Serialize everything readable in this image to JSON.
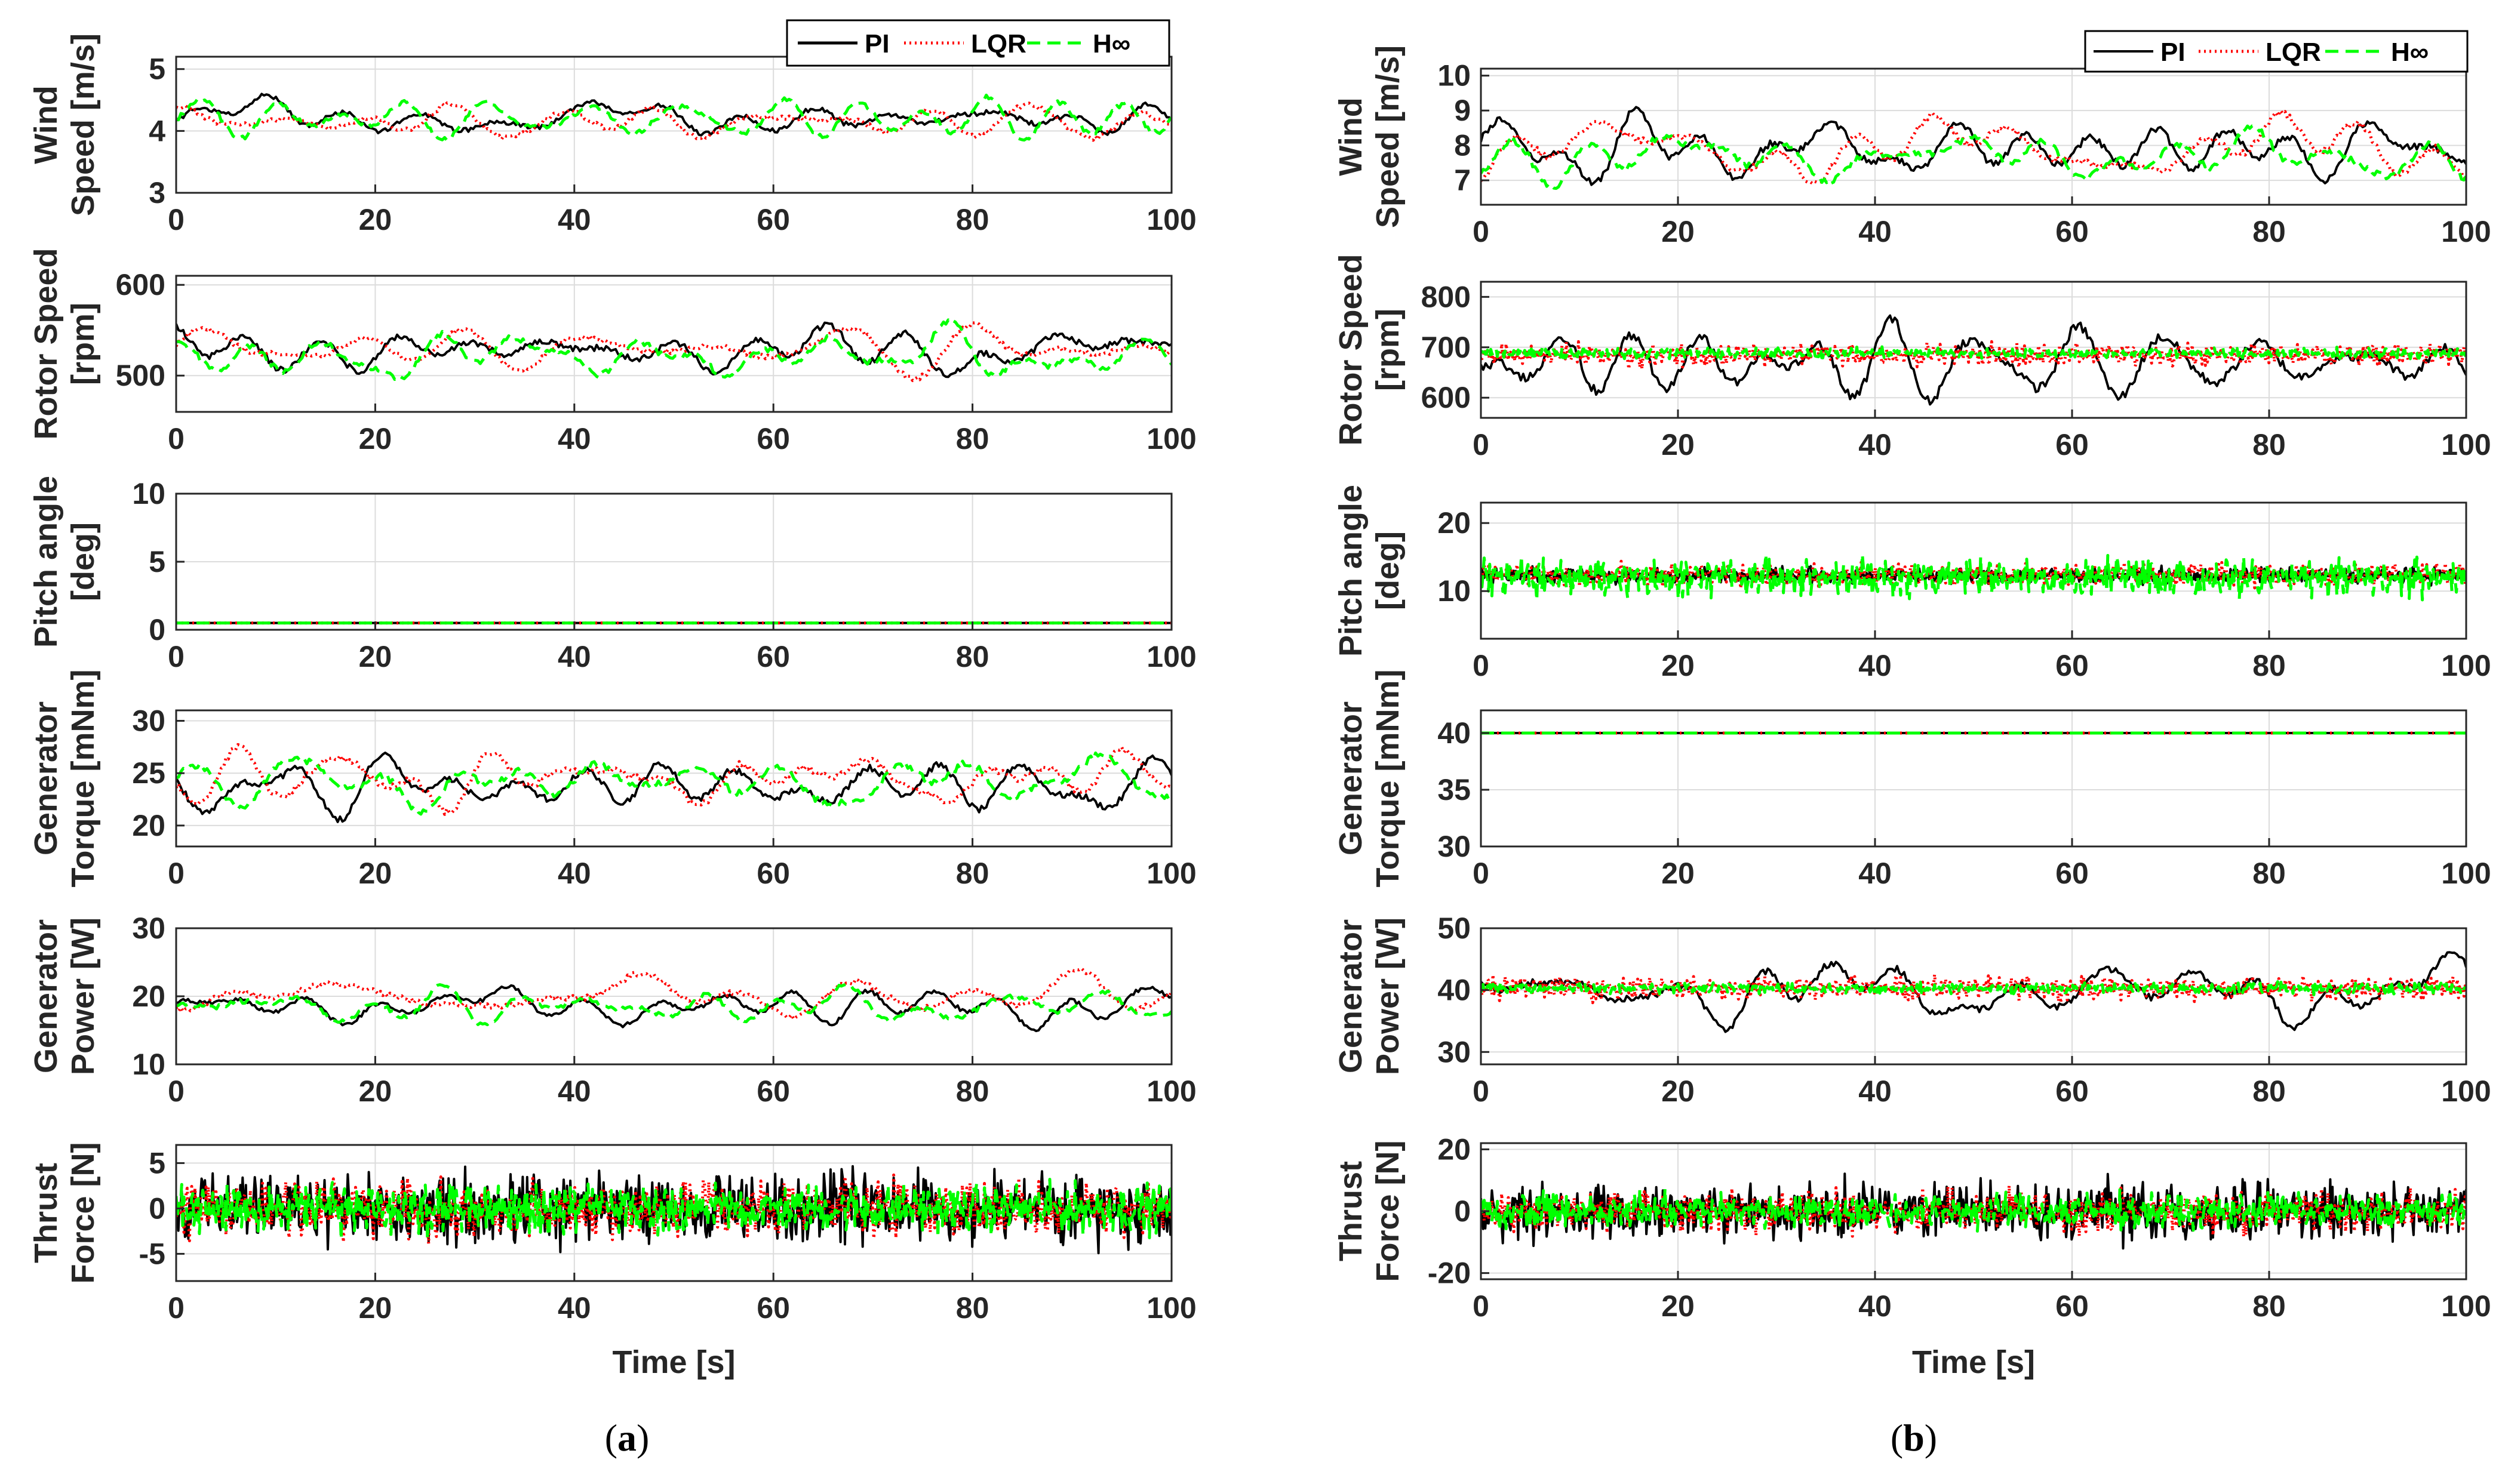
{
  "legend": [
    "PI",
    "LQR",
    "H∞"
  ],
  "colors": {
    "PI": "#000000",
    "LQR": "#ff0000",
    "Hinf": "#00ff00",
    "grid": "#dcdcdc"
  },
  "xlabel": "Time [s]",
  "captions": {
    "a": "a",
    "b": "b"
  },
  "chart_data": [
    {
      "id": "a",
      "type": "line",
      "x_range": [
        0,
        100
      ],
      "x_ticks": [
        0,
        20,
        40,
        60,
        80,
        100
      ],
      "xlabel": "Time [s]",
      "panels": [
        {
          "ylabel": [
            "Wind",
            "Speed [m/s]"
          ],
          "ylim": [
            3,
            5.2
          ],
          "yticks": [
            3,
            4,
            5
          ],
          "grid": true,
          "series": [
            {
              "name": "PI",
              "style": "solid",
              "base": 4.2,
              "amp": 0.3,
              "kind": "smooth",
              "seed": 11
            },
            {
              "name": "LQR",
              "style": "dotted",
              "base": 4.15,
              "amp": 0.3,
              "kind": "smooth",
              "seed": 12
            },
            {
              "name": "H∞",
              "style": "dashed",
              "base": 4.2,
              "amp": 0.3,
              "kind": "smooth",
              "seed": 13
            }
          ]
        },
        {
          "ylabel": [
            "Rotor Speed",
            "[rpm]"
          ],
          "ylim": [
            460,
            610
          ],
          "yticks": [
            500,
            600
          ],
          "grid": true,
          "series": [
            {
              "name": "PI",
              "style": "solid",
              "base": 528,
              "amp": 28,
              "kind": "smooth",
              "seed": 21
            },
            {
              "name": "LQR",
              "style": "dotted",
              "base": 530,
              "amp": 22,
              "kind": "smooth",
              "seed": 22
            },
            {
              "name": "H∞",
              "style": "dashed",
              "base": 522,
              "amp": 25,
              "kind": "smooth",
              "seed": 23
            }
          ]
        },
        {
          "ylabel": [
            "Pitch angle",
            "[deg]"
          ],
          "ylim": [
            0,
            10
          ],
          "yticks": [
            0,
            5,
            10
          ],
          "grid": true,
          "series": [
            {
              "name": "PI",
              "style": "solid",
              "base": 0.5,
              "amp": 0,
              "kind": "flat",
              "seed": 31
            },
            {
              "name": "LQR",
              "style": "dotted",
              "base": 0.5,
              "amp": 0,
              "kind": "flat",
              "seed": 32
            },
            {
              "name": "H∞",
              "style": "dashed",
              "base": 0.5,
              "amp": 0,
              "kind": "flat",
              "seed": 33
            }
          ]
        },
        {
          "ylabel": [
            "Generator",
            "Torque [mNm]"
          ],
          "ylim": [
            18,
            31
          ],
          "yticks": [
            20,
            25,
            30
          ],
          "grid": true,
          "series": [
            {
              "name": "PI",
              "style": "solid",
              "base": 23.8,
              "amp": 2.5,
              "kind": "smooth",
              "seed": 41
            },
            {
              "name": "LQR",
              "style": "dotted",
              "base": 24.5,
              "amp": 2.6,
              "kind": "smooth",
              "seed": 42
            },
            {
              "name": "H∞",
              "style": "dashed",
              "base": 24.2,
              "amp": 2.4,
              "kind": "smooth",
              "seed": 43
            }
          ]
        },
        {
          "ylabel": [
            "Generator",
            "Power [W]"
          ],
          "ylim": [
            10,
            30
          ],
          "yticks": [
            10,
            20,
            30
          ],
          "grid": true,
          "series": [
            {
              "name": "PI",
              "style": "solid",
              "base": 18.6,
              "amp": 2.4,
              "kind": "smooth",
              "seed": 51
            },
            {
              "name": "LQR",
              "style": "dotted",
              "base": 20,
              "amp": 3.2,
              "kind": "smooth",
              "seed": 52
            },
            {
              "name": "H∞",
              "style": "dashed",
              "base": 18.5,
              "amp": 2.5,
              "kind": "smooth",
              "seed": 53
            }
          ]
        },
        {
          "ylabel": [
            "Thrust",
            "Force [N]"
          ],
          "ylim": [
            -8,
            7
          ],
          "yticks": [
            -5,
            0,
            5
          ],
          "grid": true,
          "series": [
            {
              "name": "PI",
              "style": "solid",
              "base": 0,
              "amp": 5.5,
              "kind": "noise",
              "seed": 61
            },
            {
              "name": "LQR",
              "style": "dotted",
              "base": 0,
              "amp": 4.2,
              "kind": "noise",
              "seed": 62
            },
            {
              "name": "H∞",
              "style": "dashed",
              "base": 0,
              "amp": 3.8,
              "kind": "noise",
              "seed": 63
            }
          ]
        }
      ]
    },
    {
      "id": "b",
      "type": "line",
      "x_range": [
        0,
        100
      ],
      "x_ticks": [
        0,
        20,
        40,
        60,
        80,
        100
      ],
      "xlabel": "Time [s]",
      "panels": [
        {
          "ylabel": [
            "Wind",
            "Speed [m/s]"
          ],
          "ylim": [
            6.3,
            10.2
          ],
          "yticks": [
            7,
            8,
            9,
            10
          ],
          "grid": true,
          "series": [
            {
              "name": "PI",
              "style": "solid",
              "base": 7.9,
              "amp": 0.8,
              "kind": "smooth",
              "seed": 71
            },
            {
              "name": "LQR",
              "style": "dotted",
              "base": 7.9,
              "amp": 0.8,
              "kind": "smooth",
              "seed": 72
            },
            {
              "name": "H∞",
              "style": "dashed",
              "base": 7.7,
              "amp": 0.7,
              "kind": "smooth",
              "seed": 73
            }
          ]
        },
        {
          "ylabel": [
            "Rotor Speed",
            "[rpm]"
          ],
          "ylim": [
            560,
            830
          ],
          "yticks": [
            600,
            700,
            800
          ],
          "grid": true,
          "series": [
            {
              "name": "PI",
              "style": "solid",
              "base": 670,
              "amp": 75,
              "kind": "smooth",
              "seed": 81
            },
            {
              "name": "LQR",
              "style": "dotted",
              "base": 685,
              "amp": 30,
              "kind": "noise",
              "seed": 82
            },
            {
              "name": "H∞",
              "style": "dashed",
              "base": 688,
              "amp": 14,
              "kind": "noise",
              "seed": 83
            }
          ]
        },
        {
          "ylabel": [
            "Pitch angle",
            "[deg]"
          ],
          "ylim": [
            3,
            23
          ],
          "yticks": [
            10,
            20
          ],
          "grid": true,
          "series": [
            {
              "name": "PI",
              "style": "solid",
              "base": 12.3,
              "amp": 1.6,
              "kind": "noise",
              "seed": 91
            },
            {
              "name": "LQR",
              "style": "dotted",
              "base": 12.4,
              "amp": 2.2,
              "kind": "noise",
              "seed": 92
            },
            {
              "name": "H∞",
              "style": "dashed",
              "base": 12,
              "amp": 3.8,
              "kind": "noise",
              "seed": 93
            }
          ]
        },
        {
          "ylabel": [
            "Generator",
            "Torque [mNm]"
          ],
          "ylim": [
            30,
            42
          ],
          "yticks": [
            30,
            35,
            40
          ],
          "grid": true,
          "series": [
            {
              "name": "PI",
              "style": "solid",
              "base": 40,
              "amp": 0,
              "kind": "flat",
              "seed": 101
            },
            {
              "name": "LQR",
              "style": "dotted",
              "base": 40,
              "amp": 0,
              "kind": "flat",
              "seed": 102
            },
            {
              "name": "H∞",
              "style": "dashed",
              "base": 40,
              "amp": 0,
              "kind": "flat",
              "seed": 103
            }
          ]
        },
        {
          "ylabel": [
            "Generator",
            "Power [W]"
          ],
          "ylim": [
            28,
            50
          ],
          "yticks": [
            30,
            40,
            50
          ],
          "grid": true,
          "series": [
            {
              "name": "PI",
              "style": "solid",
              "base": 39.8,
              "amp": 4.5,
              "kind": "smooth",
              "seed": 111
            },
            {
              "name": "LQR",
              "style": "dotted",
              "base": 40.3,
              "amp": 2.5,
              "kind": "noise",
              "seed": 112
            },
            {
              "name": "H∞",
              "style": "dashed",
              "base": 40.3,
              "amp": 1.2,
              "kind": "noise",
              "seed": 113
            }
          ]
        },
        {
          "ylabel": [
            "Thrust",
            "Force [N]"
          ],
          "ylim": [
            -22,
            22
          ],
          "yticks": [
            -20,
            0,
            20
          ],
          "grid": true,
          "series": [
            {
              "name": "PI",
              "style": "solid",
              "base": 0,
              "amp": 13,
              "kind": "noise",
              "seed": 121
            },
            {
              "name": "LQR",
              "style": "dotted",
              "base": 0,
              "amp": 9,
              "kind": "noise",
              "seed": 122
            },
            {
              "name": "H∞",
              "style": "dashed",
              "base": 0,
              "amp": 8,
              "kind": "noise",
              "seed": 123
            }
          ]
        }
      ]
    }
  ]
}
